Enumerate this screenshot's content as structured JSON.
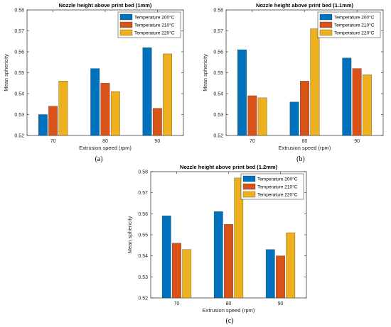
{
  "chart_data": [
    {
      "type": "bar",
      "panel_label": "(a)",
      "title": "Nozzle height above print bed (1mm)",
      "xlabel": "Extrusion speed (rpm)",
      "ylabel": "Mean sphericity",
      "categories": [
        "70",
        "80",
        "90"
      ],
      "ylim": [
        0.52,
        0.58
      ],
      "yticks": [
        "0.52",
        "0.53",
        "0.54",
        "0.55",
        "0.56",
        "0.57",
        "0.58"
      ],
      "legend_position": "top-right",
      "series": [
        {
          "name": "Temperature 200°C",
          "color": "#0072BD",
          "values": [
            0.53,
            0.552,
            0.562
          ]
        },
        {
          "name": "Temperature 210°C",
          "color": "#D95319",
          "values": [
            0.534,
            0.545,
            0.533
          ]
        },
        {
          "name": "Temperature 220°C",
          "color": "#EDB120",
          "values": [
            0.546,
            0.541,
            0.559
          ]
        }
      ]
    },
    {
      "type": "bar",
      "panel_label": "(b)",
      "title": "Nozzle height above print bed (1.1mm)",
      "xlabel": "Extrusion speed (rpm)",
      "ylabel": "Mean sphericity",
      "categories": [
        "70",
        "80",
        "90"
      ],
      "ylim": [
        0.52,
        0.58
      ],
      "yticks": [
        "0.52",
        "0.53",
        "0.54",
        "0.55",
        "0.56",
        "0.57",
        "0.58"
      ],
      "legend_position": "top-right",
      "series": [
        {
          "name": "Temperature 200°C",
          "color": "#0072BD",
          "values": [
            0.561,
            0.536,
            0.557
          ]
        },
        {
          "name": "Temperature 210°C",
          "color": "#D95319",
          "values": [
            0.539,
            0.546,
            0.552
          ]
        },
        {
          "name": "Temperature 220°C",
          "color": "#EDB120",
          "values": [
            0.538,
            0.571,
            0.549
          ]
        }
      ]
    },
    {
      "type": "bar",
      "panel_label": "(c)",
      "title": "Nozzle height above print bed (1.2mm)",
      "xlabel": "Extrusion speed (rpm)",
      "ylabel": "Mean sphericity",
      "categories": [
        "70",
        "80",
        "90"
      ],
      "ylim": [
        0.52,
        0.58
      ],
      "yticks": [
        "0.52",
        "0.53",
        "0.54",
        "0.55",
        "0.56",
        "0.57",
        "0.58"
      ],
      "legend_position": "top-right",
      "series": [
        {
          "name": "Temperature 200°C",
          "color": "#0072BD",
          "values": [
            0.559,
            0.561,
            0.543
          ]
        },
        {
          "name": "Temperature 210°C",
          "color": "#D95319",
          "values": [
            0.546,
            0.555,
            0.54
          ]
        },
        {
          "name": "Temperature 220°C",
          "color": "#EDB120",
          "values": [
            0.543,
            0.577,
            0.551
          ]
        }
      ]
    }
  ]
}
